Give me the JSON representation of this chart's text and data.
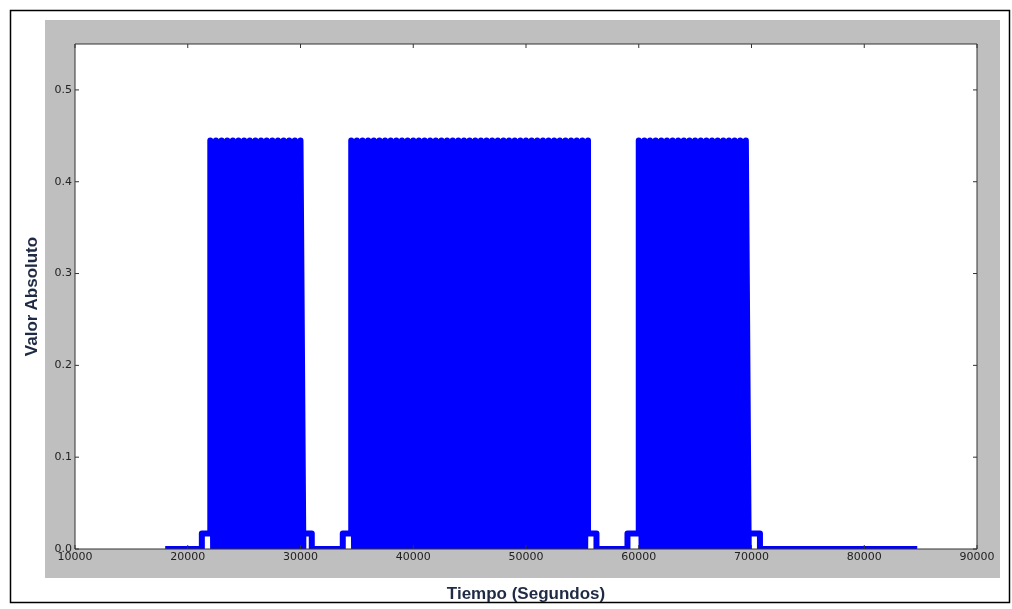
{
  "chart_data": {
    "type": "line",
    "xlabel": "Tiempo (Segundos)",
    "ylabel": "Valor Absoluto",
    "x": [
      18000,
      21250,
      21250,
      22000,
      22000,
      22250,
      22500,
      22750,
      23000,
      23250,
      23500,
      23750,
      24000,
      24250,
      24500,
      24750,
      25000,
      25250,
      25500,
      25750,
      26000,
      26250,
      26500,
      26750,
      27000,
      27250,
      27500,
      27750,
      28000,
      28250,
      28500,
      28750,
      29000,
      29250,
      29500,
      29750,
      30000,
      30250,
      30250,
      31000,
      31000,
      33750,
      33750,
      34500,
      34500,
      34750,
      35000,
      35250,
      35500,
      35750,
      36000,
      36250,
      36500,
      36750,
      37000,
      37250,
      37500,
      37750,
      38000,
      38250,
      38500,
      38750,
      39000,
      39250,
      39500,
      39750,
      40000,
      40250,
      40500,
      40750,
      41000,
      41250,
      41500,
      41750,
      42000,
      42250,
      42500,
      42750,
      43000,
      43250,
      43500,
      43750,
      44000,
      44250,
      44500,
      44750,
      45000,
      45250,
      45500,
      45750,
      46000,
      46250,
      46500,
      46750,
      47000,
      47250,
      47500,
      47750,
      48000,
      48250,
      48500,
      48750,
      49000,
      49250,
      49500,
      49750,
      50000,
      50250,
      50500,
      50750,
      51000,
      51250,
      51500,
      51750,
      52000,
      52250,
      52500,
      52750,
      53000,
      53250,
      53500,
      53750,
      54000,
      54250,
      54500,
      54750,
      55000,
      55250,
      55500,
      55500,
      56250,
      56250,
      59000,
      59000,
      60000,
      60000,
      60250,
      60500,
      60750,
      61000,
      61250,
      61500,
      61750,
      62000,
      62250,
      62500,
      62750,
      63000,
      63250,
      63500,
      63750,
      64000,
      64250,
      64500,
      64750,
      65000,
      65250,
      65500,
      65750,
      66000,
      66250,
      66500,
      66750,
      67000,
      67250,
      67500,
      67750,
      68000,
      68250,
      68500,
      68750,
      69000,
      69250,
      69500,
      69750,
      69750,
      70750,
      70750,
      84700
    ],
    "series": [
      {
        "color": "#0000ff",
        "values": [
          0,
          0,
          0.017,
          0.017,
          0.445,
          0,
          0.445,
          0,
          0.445,
          0,
          0.445,
          0,
          0.445,
          0,
          0.445,
          0,
          0.445,
          0,
          0.445,
          0,
          0.445,
          0,
          0.445,
          0,
          0.445,
          0,
          0.445,
          0,
          0.445,
          0,
          0.445,
          0,
          0.445,
          0,
          0.445,
          0,
          0.445,
          0,
          0.017,
          0.017,
          0,
          0,
          0.017,
          0.017,
          0.445,
          0,
          0.445,
          0,
          0.445,
          0,
          0.445,
          0,
          0.445,
          0,
          0.445,
          0,
          0.445,
          0,
          0.445,
          0,
          0.445,
          0,
          0.445,
          0,
          0.445,
          0,
          0.445,
          0,
          0.445,
          0,
          0.445,
          0,
          0.445,
          0,
          0.445,
          0,
          0.445,
          0,
          0.445,
          0,
          0.445,
          0,
          0.445,
          0,
          0.445,
          0,
          0.445,
          0,
          0.445,
          0,
          0.445,
          0,
          0.445,
          0,
          0.445,
          0,
          0.445,
          0,
          0.445,
          0,
          0.445,
          0,
          0.445,
          0,
          0.445,
          0,
          0.445,
          0,
          0.445,
          0,
          0.445,
          0,
          0.445,
          0,
          0.445,
          0,
          0.445,
          0,
          0.445,
          0,
          0.445,
          0,
          0.445,
          0,
          0.445,
          0,
          0.445,
          0,
          0.445,
          0.017,
          0.017,
          0,
          0,
          0.017,
          0.017,
          0.445,
          0,
          0.445,
          0,
          0.445,
          0,
          0.445,
          0,
          0.445,
          0,
          0.445,
          0,
          0.445,
          0,
          0.445,
          0,
          0.445,
          0,
          0.445,
          0,
          0.445,
          0,
          0.445,
          0,
          0.445,
          0,
          0.445,
          0,
          0.445,
          0,
          0.445,
          0,
          0.445,
          0,
          0.445,
          0,
          0.445,
          0,
          0.445,
          0,
          0.017,
          0.017,
          0,
          0
        ]
      }
    ],
    "xlim": [
      10000,
      90000
    ],
    "xticks": [
      10000,
      20000,
      30000,
      40000,
      50000,
      60000,
      70000,
      80000,
      90000
    ],
    "ylim": [
      0,
      0.55
    ],
    "yticks": [
      {
        "value": 0,
        "label": "0.0"
      },
      {
        "value": 0.1,
        "label": "0.1"
      },
      {
        "value": 0.2,
        "label": "0.2"
      },
      {
        "value": 0.3,
        "label": "0.3"
      },
      {
        "value": 0.4,
        "label": "0.4"
      },
      {
        "value": 0.5,
        "label": "0.5"
      }
    ],
    "grid": false,
    "legend": false
  }
}
